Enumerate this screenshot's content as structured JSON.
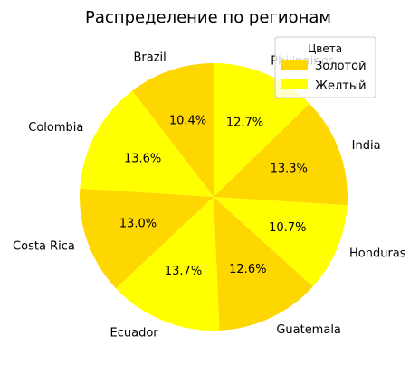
{
  "chart_data": {
    "type": "pie",
    "title": "Распределение по регионам",
    "categories": [
      "Brazil",
      "Colombia",
      "Costa Rica",
      "Ecuador",
      "Guatemala",
      "Honduras",
      "India",
      "Philippines"
    ],
    "values": [
      10.4,
      13.6,
      13.0,
      13.7,
      12.6,
      10.7,
      13.3,
      12.7
    ],
    "value_labels": [
      "10.4%",
      "13.6%",
      "13.0%",
      "13.7%",
      "12.6%",
      "10.7%",
      "13.3%",
      "12.7%"
    ],
    "slice_colors": [
      "#FFD700",
      "#FFFF00",
      "#FFD700",
      "#FFFF00",
      "#FFD700",
      "#FFFF00",
      "#FFD700",
      "#FFFF00"
    ],
    "start_angle_deg": 90,
    "direction": "counterclockwise",
    "legend": {
      "title": "Цвета",
      "placement": "top-right",
      "entries": [
        {
          "label": "Золотой",
          "color": "#FFD700"
        },
        {
          "label": "Желтый",
          "color": "#FFFF00"
        }
      ]
    }
  }
}
